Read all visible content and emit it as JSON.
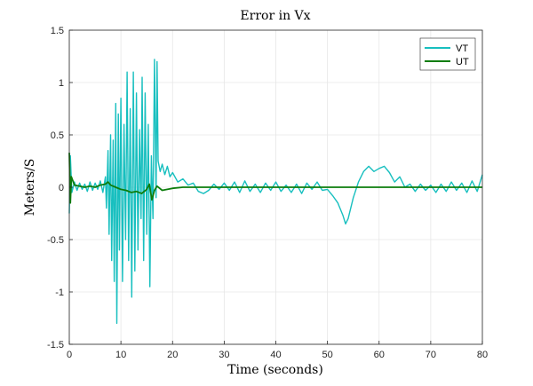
{
  "chart_data": {
    "type": "line",
    "title": "Error in Vx",
    "xlabel": "Time (seconds)",
    "ylabel": "Meters/S",
    "xlim": [
      0,
      80
    ],
    "ylim": [
      -1.5,
      1.5
    ],
    "x_ticks": [
      "0",
      "10",
      "20",
      "30",
      "40",
      "50",
      "60",
      "70",
      "80"
    ],
    "y_ticks": [
      "1.5",
      "1",
      "0.5",
      "0",
      "-0.5",
      "-1",
      "-1.5"
    ],
    "grid": true,
    "legend_position": "top-right",
    "series": [
      {
        "name": "VT",
        "color": "#17bfbf",
        "points": [
          [
            0,
            -0.25
          ],
          [
            0.2,
            0.3
          ],
          [
            0.5,
            -0.05
          ],
          [
            1,
            0.05
          ],
          [
            1.5,
            -0.03
          ],
          [
            2,
            0.04
          ],
          [
            2.5,
            -0.02
          ],
          [
            3,
            0.03
          ],
          [
            3.5,
            -0.04
          ],
          [
            4,
            0.05
          ],
          [
            4.5,
            -0.03
          ],
          [
            5,
            0.04
          ],
          [
            5.5,
            -0.02
          ],
          [
            6,
            0.06
          ],
          [
            6.5,
            -0.05
          ],
          [
            7,
            0.1
          ],
          [
            7.2,
            -0.2
          ],
          [
            7.5,
            0.35
          ],
          [
            7.7,
            -0.45
          ],
          [
            8,
            0.5
          ],
          [
            8.2,
            -0.7
          ],
          [
            8.5,
            0.45
          ],
          [
            8.7,
            -0.9
          ],
          [
            9,
            0.8
          ],
          [
            9.2,
            -1.3
          ],
          [
            9.5,
            0.7
          ],
          [
            9.7,
            -0.6
          ],
          [
            10,
            0.85
          ],
          [
            10.3,
            -0.9
          ],
          [
            10.6,
            0.6
          ],
          [
            10.9,
            -0.5
          ],
          [
            11.2,
            1.1
          ],
          [
            11.5,
            -0.7
          ],
          [
            11.8,
            0.75
          ],
          [
            12.1,
            -1.05
          ],
          [
            12.4,
            1.1
          ],
          [
            12.7,
            -0.8
          ],
          [
            13,
            0.9
          ],
          [
            13.3,
            -0.6
          ],
          [
            13.6,
            0.55
          ],
          [
            13.9,
            -0.3
          ],
          [
            14.1,
            1.05
          ],
          [
            14.4,
            -0.7
          ],
          [
            14.7,
            0.9
          ],
          [
            15,
            -0.45
          ],
          [
            15.3,
            0.6
          ],
          [
            15.6,
            -0.95
          ],
          [
            15.9,
            0.3
          ],
          [
            16.2,
            -0.3
          ],
          [
            16.5,
            1.22
          ],
          [
            16.8,
            -0.1
          ],
          [
            17,
            1.2
          ],
          [
            17.2,
            0.25
          ],
          [
            17.6,
            0.15
          ],
          [
            18,
            0.22
          ],
          [
            18.5,
            0.12
          ],
          [
            19,
            0.2
          ],
          [
            19.5,
            0.1
          ],
          [
            20,
            0.14
          ],
          [
            21,
            0.05
          ],
          [
            22,
            0.08
          ],
          [
            23,
            0.02
          ],
          [
            24,
            0.04
          ],
          [
            25,
            -0.04
          ],
          [
            26,
            -0.06
          ],
          [
            27,
            -0.03
          ],
          [
            28,
            0.03
          ],
          [
            29,
            -0.02
          ],
          [
            30,
            0.04
          ],
          [
            31,
            -0.03
          ],
          [
            32,
            0.05
          ],
          [
            33,
            -0.05
          ],
          [
            34,
            0.06
          ],
          [
            35,
            -0.04
          ],
          [
            36,
            0.03
          ],
          [
            37,
            -0.05
          ],
          [
            38,
            0.04
          ],
          [
            39,
            -0.03
          ],
          [
            40,
            0.05
          ],
          [
            41,
            -0.04
          ],
          [
            42,
            0.02
          ],
          [
            43,
            -0.05
          ],
          [
            44,
            0.03
          ],
          [
            45,
            -0.06
          ],
          [
            46,
            0.04
          ],
          [
            47,
            -0.02
          ],
          [
            48,
            0.05
          ],
          [
            49,
            -0.03
          ],
          [
            50,
            -0.02
          ],
          [
            51,
            -0.08
          ],
          [
            52,
            -0.15
          ],
          [
            53,
            -0.27
          ],
          [
            53.5,
            -0.35
          ],
          [
            54,
            -0.3
          ],
          [
            55,
            -0.1
          ],
          [
            56,
            0.05
          ],
          [
            57,
            0.15
          ],
          [
            58,
            0.2
          ],
          [
            59,
            0.15
          ],
          [
            60,
            0.18
          ],
          [
            61,
            0.2
          ],
          [
            62,
            0.14
          ],
          [
            63,
            0.05
          ],
          [
            64,
            0.1
          ],
          [
            65,
            0.0
          ],
          [
            66,
            0.03
          ],
          [
            67,
            -0.04
          ],
          [
            68,
            0.03
          ],
          [
            69,
            -0.03
          ],
          [
            70,
            0.02
          ],
          [
            71,
            -0.05
          ],
          [
            72,
            0.03
          ],
          [
            73,
            -0.04
          ],
          [
            74,
            0.05
          ],
          [
            75,
            -0.03
          ],
          [
            76,
            0.04
          ],
          [
            77,
            -0.05
          ],
          [
            78,
            0.06
          ],
          [
            79,
            -0.04
          ],
          [
            80,
            0.12
          ]
        ]
      },
      {
        "name": "UT",
        "color": "#0d7d0d",
        "points": [
          [
            0,
            0.33
          ],
          [
            0.2,
            -0.15
          ],
          [
            0.4,
            0.1
          ],
          [
            1,
            0.02
          ],
          [
            2,
            0.01
          ],
          [
            3,
            0.0
          ],
          [
            4,
            0.01
          ],
          [
            5,
            0.0
          ],
          [
            6,
            0.02
          ],
          [
            7,
            0.03
          ],
          [
            7.5,
            0.05
          ],
          [
            8,
            0.02
          ],
          [
            9,
            0.0
          ],
          [
            10,
            -0.02
          ],
          [
            11,
            -0.03
          ],
          [
            12,
            -0.05
          ],
          [
            13,
            -0.04
          ],
          [
            14,
            -0.06
          ],
          [
            15,
            -0.02
          ],
          [
            15.5,
            0.03
          ],
          [
            16,
            -0.12
          ],
          [
            16.5,
            -0.03
          ],
          [
            17,
            0.01
          ],
          [
            18,
            -0.03
          ],
          [
            19,
            -0.02
          ],
          [
            20,
            -0.01
          ],
          [
            22,
            0.0
          ],
          [
            25,
            0.0
          ],
          [
            30,
            0.0
          ],
          [
            40,
            0.0
          ],
          [
            50,
            0.0
          ],
          [
            60,
            0.0
          ],
          [
            70,
            0.0
          ],
          [
            80,
            0.0
          ]
        ]
      }
    ]
  }
}
